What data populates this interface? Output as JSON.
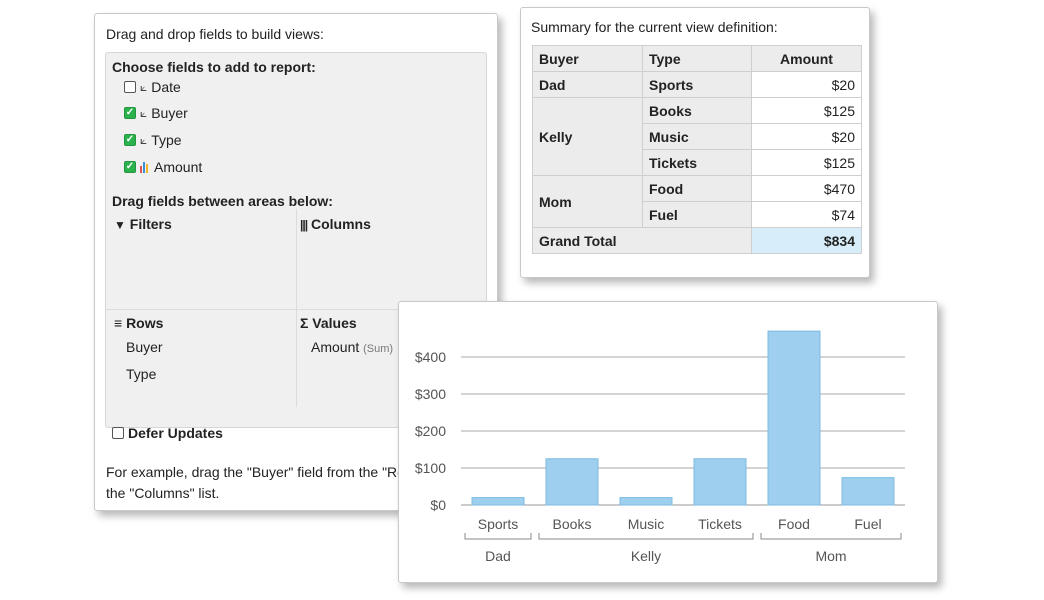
{
  "builder": {
    "intro": "Drag and drop fields to build views:",
    "choose_header": "Choose fields to add to report:",
    "fields": [
      {
        "label": "Date",
        "checked": false,
        "icon": "dimension-icon"
      },
      {
        "label": "Buyer",
        "checked": true,
        "icon": "dimension-icon"
      },
      {
        "label": "Type",
        "checked": true,
        "icon": "dimension-icon"
      },
      {
        "label": "Amount",
        "checked": true,
        "icon": "measure-chart-icon"
      }
    ],
    "drag_header": "Drag fields between areas below:",
    "areas": {
      "filters": {
        "icon": "filter-icon",
        "title": "Filters"
      },
      "columns": {
        "icon": "columns-icon",
        "title": "Columns"
      },
      "rows": {
        "icon": "rows-icon",
        "title": "Rows",
        "items": [
          "Buyer",
          "Type"
        ]
      },
      "values": {
        "icon": "sigma-icon",
        "title": "Values",
        "items": [
          {
            "label": "Amount",
            "suffix": "(Sum)"
          }
        ]
      }
    },
    "defer_label": "Defer Updates",
    "example_text": "For example, drag the \"Buyer\" field from the \"Ro",
    "example_text_2": "the \"Columns\" list."
  },
  "summary": {
    "caption": "Summary for the current view definition:",
    "headers": [
      "Buyer",
      "Type",
      "Amount"
    ],
    "groups": [
      {
        "buyer": "Dad",
        "rows": [
          {
            "type": "Sports",
            "amount": "$20"
          }
        ]
      },
      {
        "buyer": "Kelly",
        "rows": [
          {
            "type": "Books",
            "amount": "$125"
          },
          {
            "type": "Music",
            "amount": "$20"
          },
          {
            "type": "Tickets",
            "amount": "$125"
          }
        ]
      },
      {
        "buyer": "Mom",
        "rows": [
          {
            "type": "Food",
            "amount": "$470"
          },
          {
            "type": "Fuel",
            "amount": "$74"
          }
        ]
      }
    ],
    "grand_total_label": "Grand Total",
    "grand_total": "$834"
  },
  "chart_data": {
    "type": "bar",
    "categories": [
      "Sports",
      "Books",
      "Music",
      "Tickets",
      "Food",
      "Fuel"
    ],
    "groups": [
      {
        "label": "Dad",
        "categories": [
          "Sports"
        ]
      },
      {
        "label": "Kelly",
        "categories": [
          "Books",
          "Music",
          "Tickets"
        ]
      },
      {
        "label": "Mom",
        "categories": [
          "Food",
          "Fuel"
        ]
      }
    ],
    "values": [
      20,
      125,
      20,
      125,
      470,
      74
    ],
    "yticks": [
      "$0",
      "$100",
      "$200",
      "$300",
      "$400"
    ],
    "ylim": [
      0,
      470
    ],
    "grid": true,
    "bar_color": "#9fcfee",
    "bar_stroke": "#7bbbe3"
  },
  "colors": {
    "check_green": "#2bb24c",
    "grand_total_bg": "#d7eefa"
  }
}
